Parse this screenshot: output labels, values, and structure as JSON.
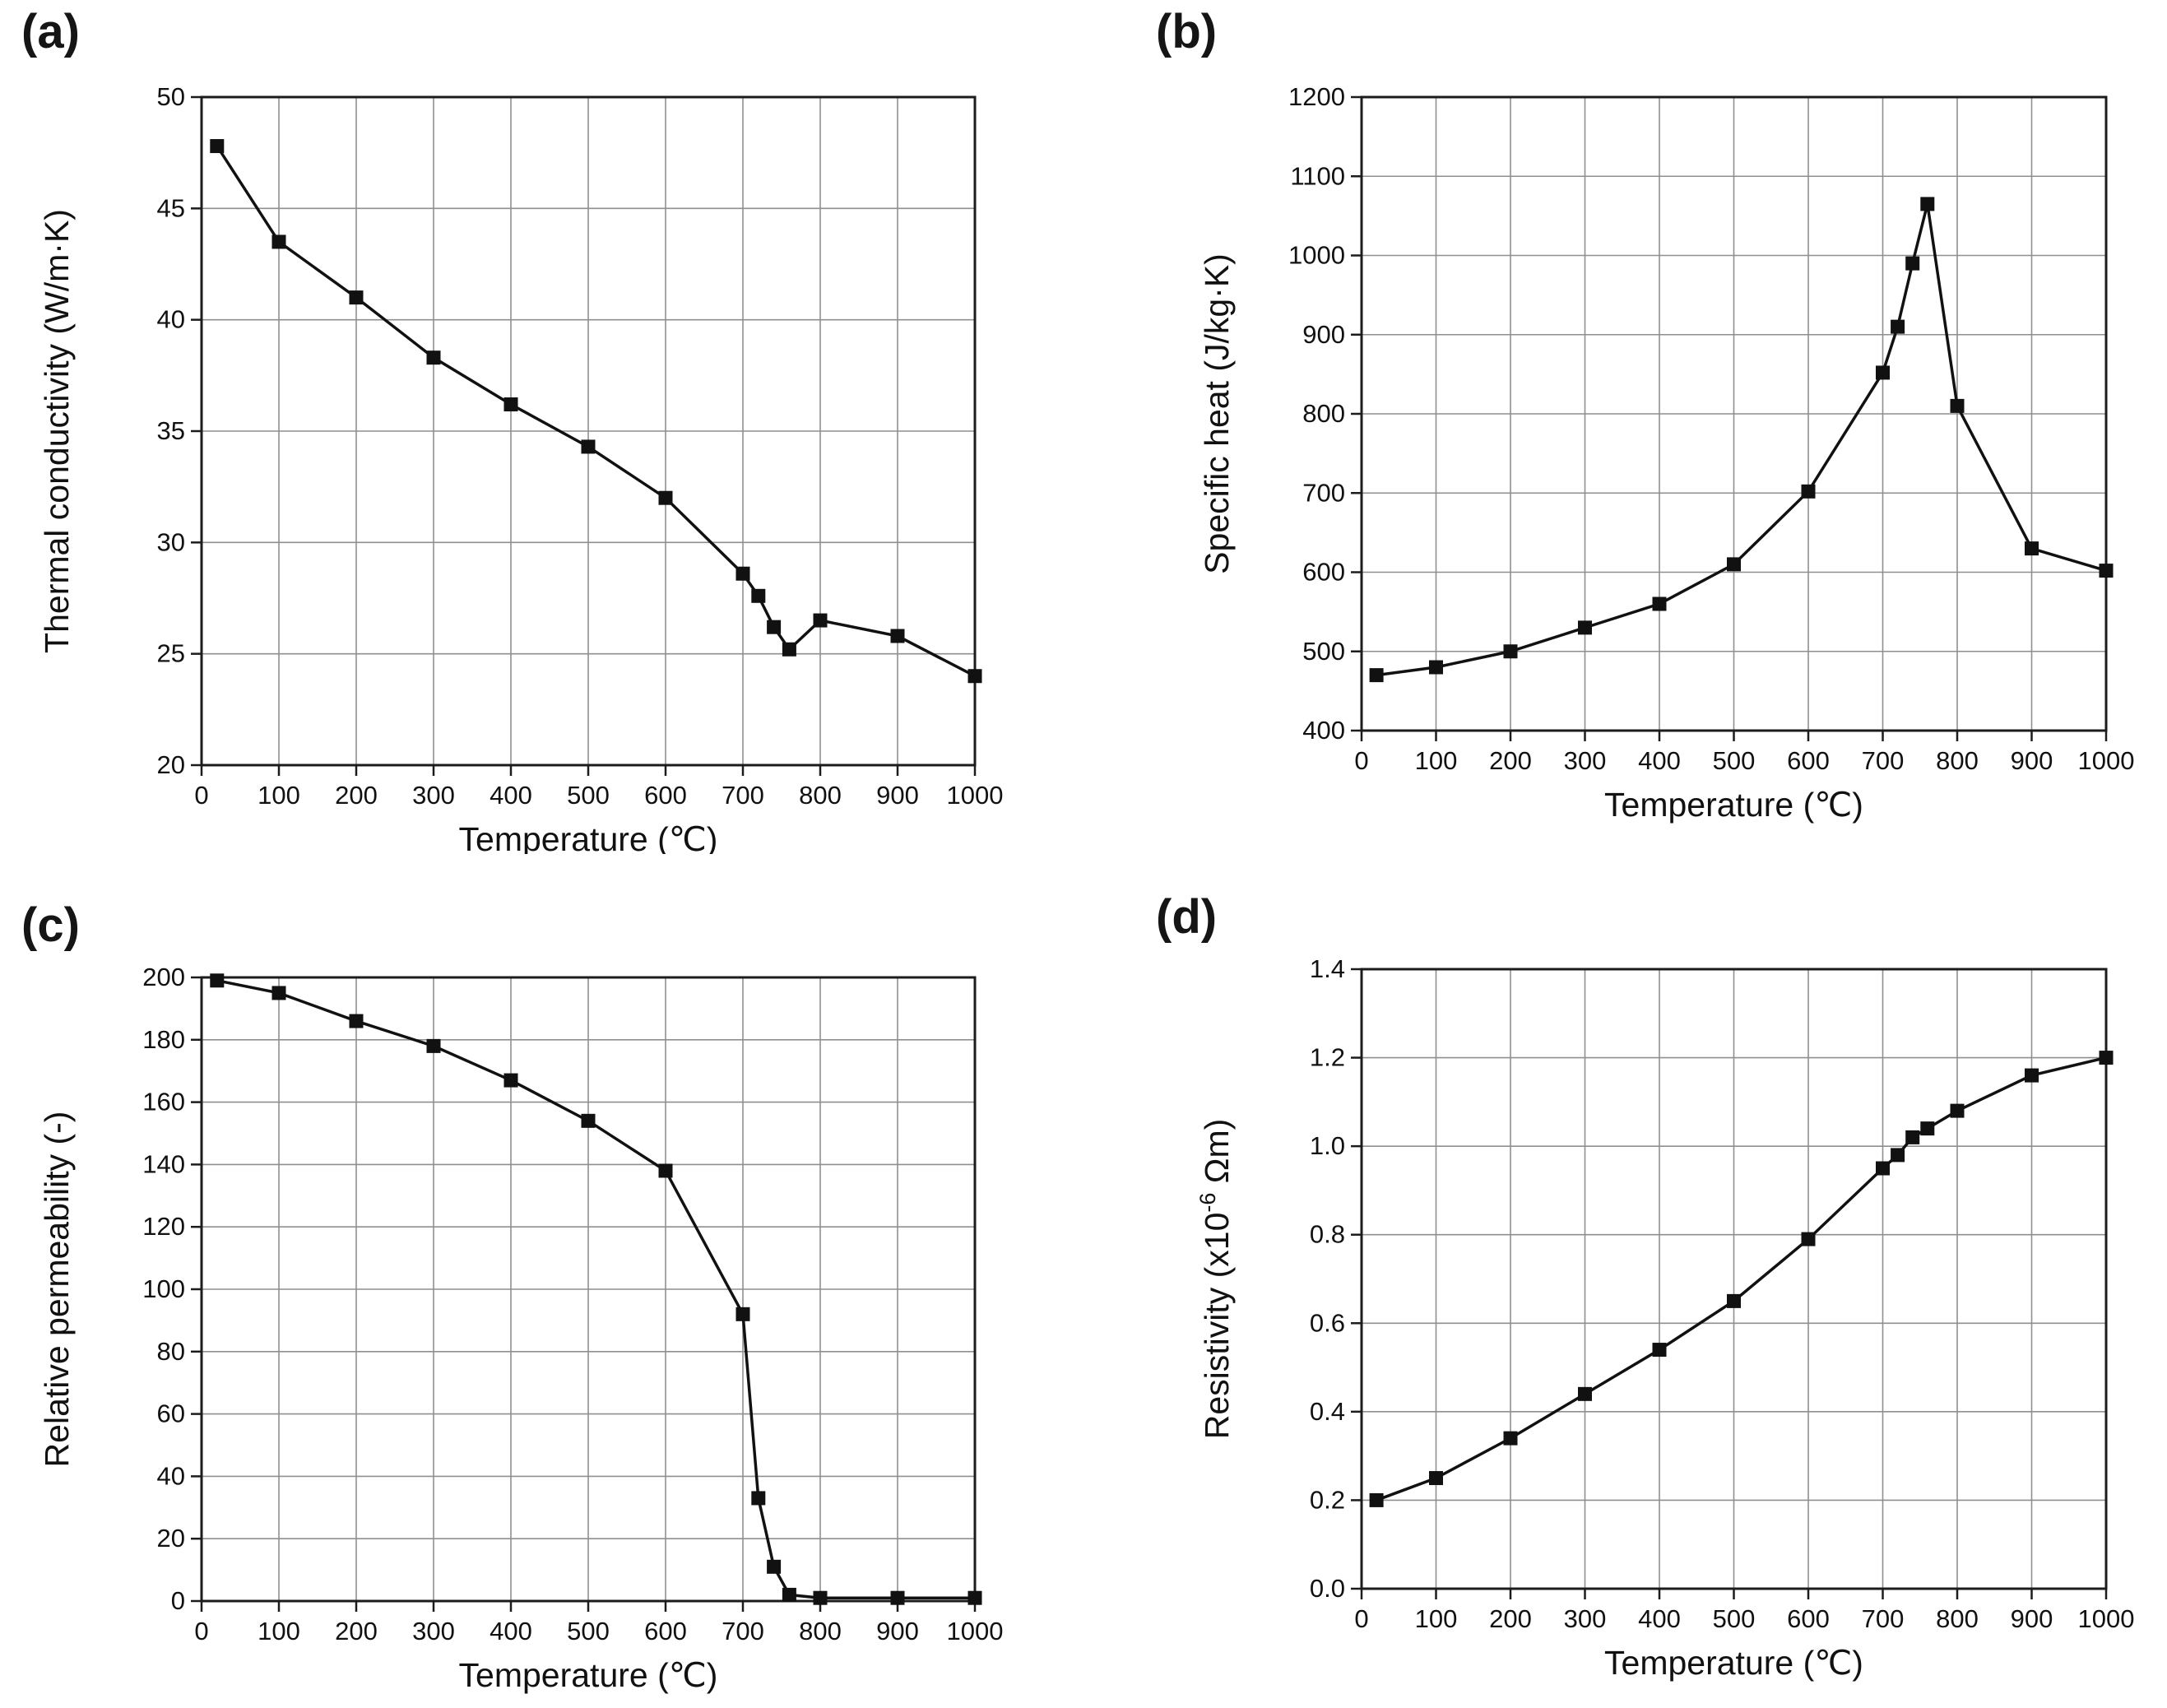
{
  "page": {
    "background": "#ffffff"
  },
  "style": {
    "line_color": "#111111",
    "marker_color": "#111111",
    "grid_color": "#8f8f8f",
    "axis_color": "#1c1c1c",
    "text_color": "#111111"
  },
  "chart_data": [
    {
      "type": "line",
      "panel": "(a)",
      "title": "",
      "xlabel": "Temperature (℃)",
      "ylabel": [
        {
          "t": "Thermal conductivity (W/m·K)"
        }
      ],
      "xlim": [
        0,
        1000
      ],
      "ylim": [
        20,
        50
      ],
      "xticks": [
        0,
        100,
        200,
        300,
        400,
        500,
        600,
        700,
        800,
        900,
        1000
      ],
      "xtick_labels": [
        "0",
        "100",
        "200",
        "300",
        "400",
        "500",
        "600",
        "700",
        "800",
        "900",
        "1000"
      ],
      "yticks": [
        20,
        25,
        30,
        35,
        40,
        45,
        50
      ],
      "ytick_labels": [
        "20",
        "25",
        "30",
        "35",
        "40",
        "45",
        "50"
      ],
      "grid": true,
      "legend": null,
      "x": [
        20,
        100,
        200,
        300,
        400,
        500,
        600,
        700,
        720,
        740,
        760,
        800,
        900,
        1000
      ],
      "y": [
        47.8,
        43.5,
        41.0,
        38.3,
        36.2,
        34.3,
        32.0,
        28.6,
        27.6,
        26.2,
        25.2,
        26.5,
        25.8,
        24.0
      ]
    },
    {
      "type": "line",
      "panel": "(b)",
      "title": "",
      "xlabel": "Temperature (℃)",
      "ylabel": [
        {
          "t": "Specific heat (J/kg·K)"
        }
      ],
      "xlim": [
        0,
        1000
      ],
      "ylim": [
        400,
        1200
      ],
      "xticks": [
        0,
        100,
        200,
        300,
        400,
        500,
        600,
        700,
        800,
        900,
        1000
      ],
      "xtick_labels": [
        "0",
        "100",
        "200",
        "300",
        "400",
        "500",
        "600",
        "700",
        "800",
        "900",
        "1000"
      ],
      "yticks": [
        400,
        500,
        600,
        700,
        800,
        900,
        1000,
        1100,
        1200
      ],
      "ytick_labels": [
        "400",
        "500",
        "600",
        "700",
        "800",
        "900",
        "1000",
        "1100",
        "1200"
      ],
      "grid": true,
      "legend": null,
      "x": [
        20,
        100,
        200,
        300,
        400,
        500,
        600,
        700,
        720,
        740,
        760,
        800,
        900,
        1000
      ],
      "y": [
        470,
        480,
        500,
        530,
        560,
        610,
        702,
        852,
        910,
        990,
        1065,
        810,
        630,
        602
      ]
    },
    {
      "type": "line",
      "panel": "(c)",
      "title": "",
      "xlabel": "Temperature (℃)",
      "ylabel": [
        {
          "t": "Relative permeability (-)"
        }
      ],
      "xlim": [
        0,
        1000
      ],
      "ylim": [
        0,
        200
      ],
      "xticks": [
        0,
        100,
        200,
        300,
        400,
        500,
        600,
        700,
        800,
        900,
        1000
      ],
      "xtick_labels": [
        "0",
        "100",
        "200",
        "300",
        "400",
        "500",
        "600",
        "700",
        "800",
        "900",
        "1000"
      ],
      "yticks": [
        0,
        20,
        40,
        60,
        80,
        100,
        120,
        140,
        160,
        180,
        200
      ],
      "ytick_labels": [
        "0",
        "20",
        "40",
        "60",
        "80",
        "100",
        "120",
        "140",
        "160",
        "180",
        "200"
      ],
      "grid": true,
      "legend": null,
      "x": [
        20,
        100,
        200,
        300,
        400,
        500,
        600,
        700,
        720,
        740,
        760,
        800,
        900,
        1000
      ],
      "y": [
        199,
        195,
        186,
        178,
        167,
        154,
        138,
        92,
        33,
        11,
        2,
        1,
        1,
        1
      ]
    },
    {
      "type": "line",
      "panel": "(d)",
      "title": "",
      "xlabel": "Temperature (℃)",
      "ylabel": [
        {
          "t": "Resistivity (x10"
        },
        {
          "t": "-6",
          "sup": true
        },
        {
          "t": " Ωm)"
        }
      ],
      "xlim": [
        0,
        1000
      ],
      "ylim": [
        0,
        1.4
      ],
      "xticks": [
        0,
        100,
        200,
        300,
        400,
        500,
        600,
        700,
        800,
        900,
        1000
      ],
      "xtick_labels": [
        "0",
        "100",
        "200",
        "300",
        "400",
        "500",
        "600",
        "700",
        "800",
        "900",
        "1000"
      ],
      "yticks": [
        0,
        0.2,
        0.4,
        0.6,
        0.8,
        1.0,
        1.2,
        1.4
      ],
      "ytick_labels": [
        "0.0",
        "0.2",
        "0.4",
        "0.6",
        "0.8",
        "1.0",
        "1.2",
        "1.4"
      ],
      "grid": true,
      "legend": null,
      "x": [
        20,
        100,
        200,
        300,
        400,
        500,
        600,
        700,
        720,
        740,
        760,
        800,
        900,
        1000
      ],
      "y": [
        0.2,
        0.25,
        0.34,
        0.44,
        0.54,
        0.65,
        0.79,
        0.95,
        0.98,
        1.02,
        1.04,
        1.08,
        1.16,
        1.2
      ]
    }
  ]
}
